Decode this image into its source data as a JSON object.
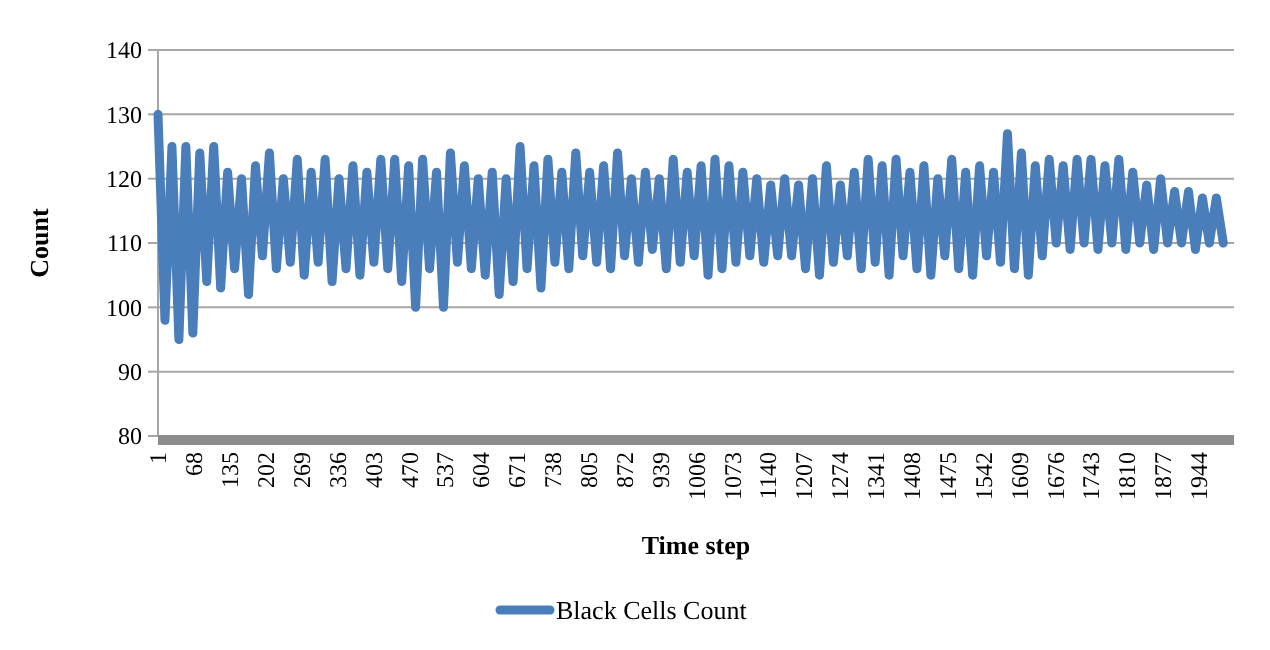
{
  "chart_data": {
    "type": "line",
    "xlabel": "Time step",
    "ylabel": "Count",
    "x": [
      1,
      14,
      27,
      40,
      53,
      66,
      79,
      92,
      105,
      118,
      131,
      144,
      157,
      170,
      183,
      196,
      209,
      222,
      235,
      248,
      261,
      274,
      287,
      300,
      313,
      326,
      339,
      352,
      365,
      378,
      391,
      404,
      417,
      430,
      443,
      456,
      469,
      482,
      495,
      508,
      521,
      534,
      547,
      560,
      573,
      586,
      599,
      612,
      625,
      638,
      651,
      664,
      677,
      690,
      703,
      716,
      729,
      742,
      755,
      768,
      781,
      794,
      807,
      820,
      833,
      846,
      859,
      872,
      885,
      898,
      911,
      924,
      937,
      950,
      963,
      976,
      989,
      1002,
      1015,
      1028,
      1041,
      1054,
      1067,
      1080,
      1093,
      1106,
      1119,
      1132,
      1145,
      1158,
      1171,
      1184,
      1197,
      1210,
      1223,
      1236,
      1249,
      1262,
      1275,
      1288,
      1301,
      1314,
      1327,
      1340,
      1353,
      1366,
      1379,
      1392,
      1405,
      1418,
      1431,
      1444,
      1457,
      1470,
      1483,
      1496,
      1509,
      1522,
      1535,
      1548,
      1561,
      1574,
      1587,
      1600,
      1613,
      1626,
      1639,
      1652,
      1665,
      1678,
      1691,
      1704,
      1717,
      1730,
      1743,
      1756,
      1769,
      1782,
      1795,
      1808,
      1821,
      1834,
      1847,
      1860,
      1873,
      1886,
      1899,
      1912,
      1925,
      1938,
      1951,
      1964,
      1977,
      1990
    ],
    "series": [
      {
        "name": "Black Cells Count",
        "color": "#4a7ebb",
        "values": [
          130,
          98,
          125,
          95,
          125,
          96,
          124,
          104,
          125,
          103,
          121,
          106,
          120,
          102,
          122,
          108,
          124,
          106,
          120,
          107,
          123,
          105,
          121,
          107,
          123,
          104,
          120,
          106,
          122,
          105,
          121,
          107,
          123,
          106,
          123,
          104,
          122,
          100,
          123,
          106,
          121,
          100,
          124,
          107,
          122,
          106,
          120,
          105,
          121,
          102,
          120,
          104,
          125,
          106,
          122,
          103,
          123,
          107,
          121,
          106,
          124,
          108,
          121,
          107,
          122,
          106,
          124,
          108,
          120,
          107,
          121,
          109,
          120,
          106,
          123,
          107,
          121,
          108,
          122,
          105,
          123,
          106,
          122,
          107,
          121,
          108,
          120,
          107,
          119,
          108,
          120,
          108,
          119,
          106,
          120,
          105,
          122,
          107,
          119,
          108,
          121,
          106,
          123,
          107,
          122,
          105,
          123,
          108,
          121,
          106,
          122,
          105,
          120,
          108,
          123,
          106,
          121,
          105,
          122,
          108,
          121,
          107,
          127,
          106,
          124,
          105,
          122,
          108,
          123,
          110,
          122,
          109,
          123,
          110,
          123,
          109,
          122,
          110,
          123,
          109,
          121,
          110,
          119,
          109,
          120,
          110,
          118,
          110,
          118,
          109,
          117,
          110,
          117,
          110
        ]
      }
    ],
    "xlim": [
      1,
      2010
    ],
    "xticks": [
      1,
      68,
      135,
      202,
      269,
      336,
      403,
      470,
      537,
      604,
      671,
      738,
      805,
      872,
      939,
      1006,
      1073,
      1140,
      1207,
      1274,
      1341,
      1408,
      1475,
      1542,
      1609,
      1676,
      1743,
      1810,
      1877,
      1944
    ],
    "ylim": [
      80,
      140
    ],
    "yticks": [
      80,
      90,
      100,
      110,
      120,
      130,
      140
    ],
    "grid": "y",
    "legend": "bottom"
  }
}
